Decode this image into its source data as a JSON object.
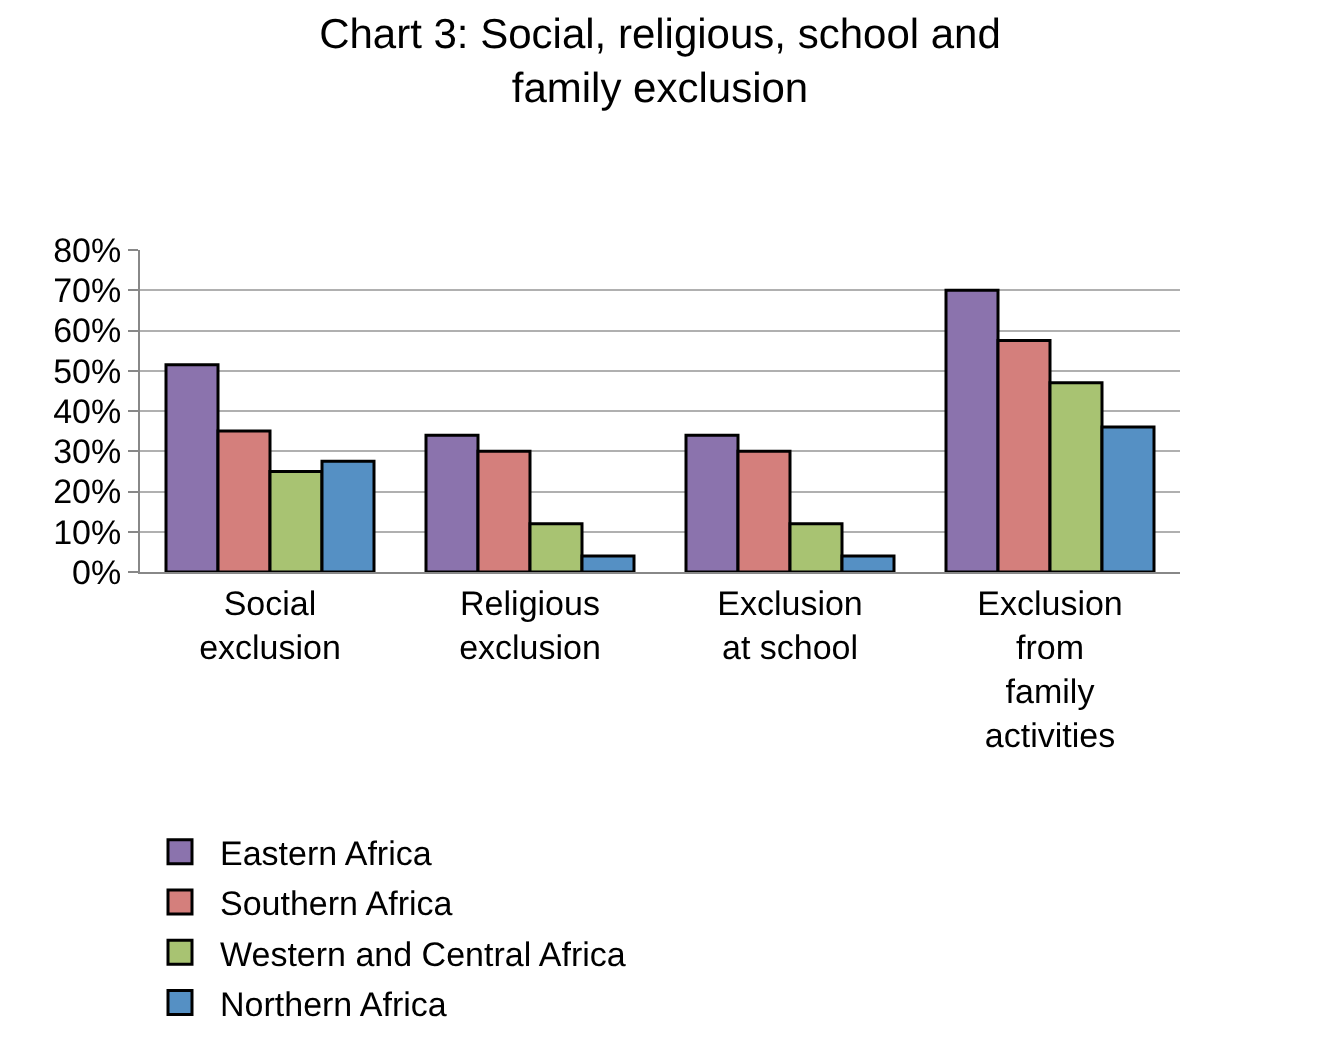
{
  "chart_data": {
    "type": "bar",
    "title": "Chart 3: Social, religious, school and family exclusion",
    "categories": [
      "Social exclusion",
      "Religious exclusion",
      "Exclusion at school",
      "Exclusion from family activities"
    ],
    "series": [
      {
        "name": "Eastern Africa",
        "color": "#8b73ad",
        "values": [
          51.5,
          34,
          34,
          70
        ]
      },
      {
        "name": "Southern Africa",
        "color": "#d47f7c",
        "values": [
          35,
          30,
          30,
          57.5
        ]
      },
      {
        "name": "Western and Central Africa",
        "color": "#a8c372",
        "values": [
          25,
          12,
          12,
          47
        ]
      },
      {
        "name": "Northern Africa",
        "color": "#5590c4",
        "values": [
          27.5,
          4,
          4,
          36
        ]
      }
    ],
    "ylim": [
      0,
      80
    ],
    "yticks": [
      {
        "value": 0,
        "label": "0%"
      },
      {
        "value": 10,
        "label": "10%"
      },
      {
        "value": 20,
        "label": "20%"
      },
      {
        "value": 30,
        "label": "30%"
      },
      {
        "value": 40,
        "label": "40%"
      },
      {
        "value": 50,
        "label": "50%"
      },
      {
        "value": 60,
        "label": "60%"
      },
      {
        "value": 70,
        "label": "70%"
      },
      {
        "value": 80,
        "label": "80%"
      }
    ],
    "grid": "y",
    "legend": "bottom"
  }
}
